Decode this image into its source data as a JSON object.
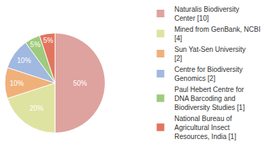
{
  "chart_data": {
    "type": "pie",
    "categories": [
      "Naturalis Biodiversity Center [10]",
      "Mined from GenBank, NCBI [4]",
      "Sun Yat-Sen University [2]",
      "Centre for Biodiversity Genomics [2]",
      "Paul Hebert Centre for DNA Barcoding and Biodiversity Studies [1]",
      "National Bureau of Agricultural Insect Resources, India [1]"
    ],
    "values": [
      50,
      20,
      10,
      10,
      5,
      5
    ],
    "value_labels": [
      "50%",
      "20%",
      "10%",
      "10%",
      "5%",
      "5%"
    ],
    "colors": [
      "#dea39e",
      "#dfe3a1",
      "#f0b07a",
      "#a1b8e0",
      "#9fcb7e",
      "#e27560"
    ],
    "data_labels": true,
    "legend": "right"
  }
}
